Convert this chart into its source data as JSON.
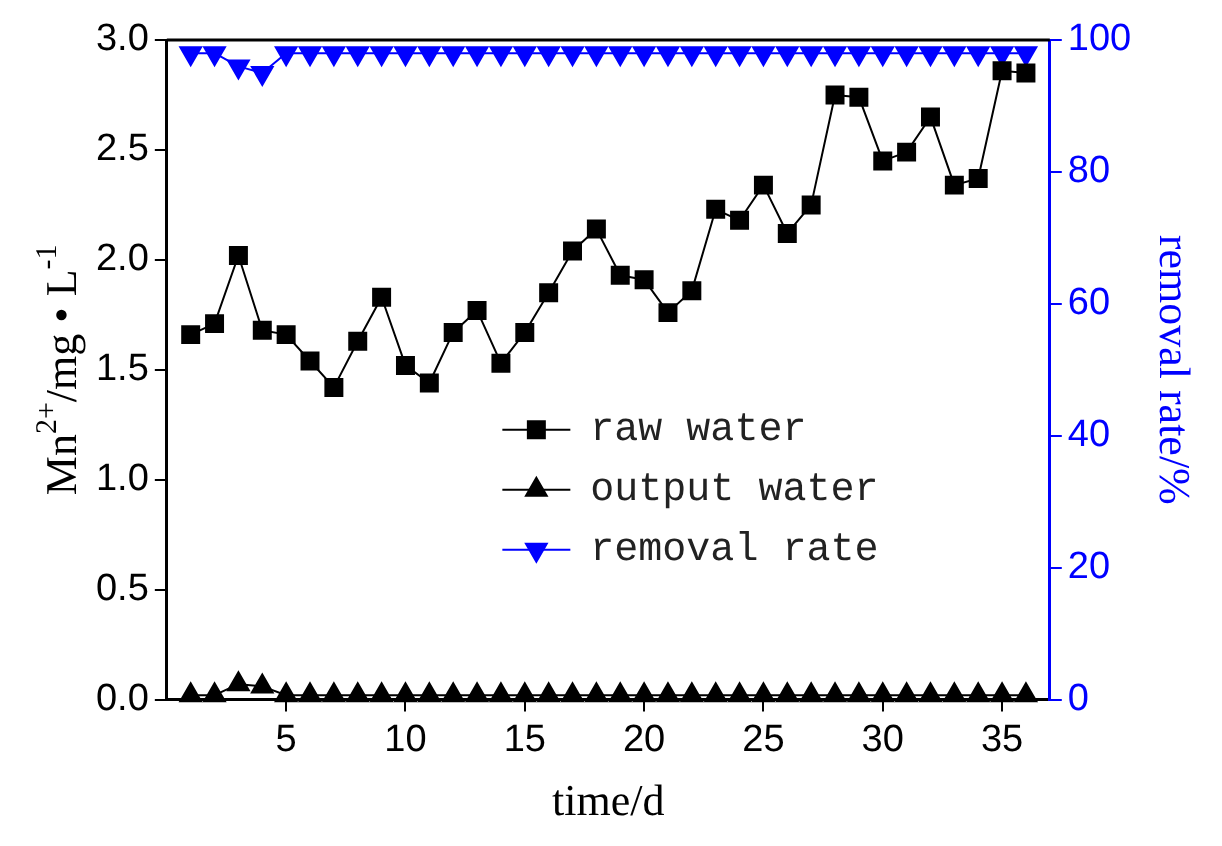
{
  "chart_data": {
    "type": "line",
    "xlabel": "time/d",
    "ylabel": "Mn$^{2+}$/mg • L$^{-1}$",
    "y2label": "removal rate/%",
    "x": [
      1,
      2,
      3,
      4,
      5,
      6,
      7,
      8,
      9,
      10,
      11,
      12,
      13,
      14,
      15,
      16,
      17,
      18,
      19,
      20,
      21,
      22,
      23,
      24,
      25,
      26,
      27,
      28,
      29,
      30,
      31,
      32,
      33,
      34,
      35,
      36
    ],
    "xlim": [
      0,
      37
    ],
    "xticks": [
      5,
      10,
      15,
      20,
      25,
      30,
      35
    ],
    "ylim": [
      0,
      3
    ],
    "yticks": [
      {
        "value": 0,
        "label": "0.0"
      },
      {
        "value": 0.5,
        "label": "0.5"
      },
      {
        "value": 1,
        "label": "1.0"
      },
      {
        "value": 1.5,
        "label": "1.5"
      },
      {
        "value": 2,
        "label": "2.0"
      },
      {
        "value": 2.5,
        "label": "2.5"
      },
      {
        "value": 3,
        "label": "3.0"
      }
    ],
    "y2lim": [
      0,
      100
    ],
    "y2ticks": [
      0,
      20,
      40,
      60,
      80,
      100
    ],
    "grid": false,
    "legend": "right",
    "line_style": "solid",
    "series": [
      {
        "name": "raw water",
        "color": "#000000",
        "marker": "square",
        "values": [
          1.66,
          1.71,
          2.02,
          1.68,
          1.66,
          1.54,
          1.42,
          1.63,
          1.83,
          1.52,
          1.44,
          1.67,
          1.77,
          1.53,
          1.67,
          1.85,
          2.04,
          2.14,
          1.93,
          1.91,
          1.76,
          1.86,
          2.23,
          2.18,
          2.34,
          2.12,
          2.25,
          2.75,
          2.74,
          2.45,
          2.49,
          2.65,
          2.34,
          2.37,
          2.86,
          2.85
        ]
      },
      {
        "name": "output water",
        "color": "#000000",
        "marker": "triangle",
        "values": [
          0.02,
          0.02,
          0.07,
          0.06,
          0.02,
          0.02,
          0.02,
          0.02,
          0.02,
          0.02,
          0.02,
          0.02,
          0.02,
          0.02,
          0.02,
          0.02,
          0.02,
          0.02,
          0.02,
          0.02,
          0.02,
          0.02,
          0.02,
          0.02,
          0.02,
          0.02,
          0.02,
          0.02,
          0.02,
          0.02,
          0.02,
          0.02,
          0.02,
          0.02,
          0.02,
          0.02
        ]
      },
      {
        "name": "removal rate",
        "color": "#0000ff",
        "marker": "triangle-down",
        "axis": "y2",
        "values": [
          98,
          98,
          96,
          95,
          98,
          98,
          98,
          98,
          98,
          98,
          98,
          98,
          98,
          98,
          98,
          98,
          98,
          98,
          98,
          98,
          98,
          98,
          98,
          98,
          98,
          98,
          98,
          98,
          98,
          98,
          98,
          98,
          98,
          98,
          98,
          98
        ]
      }
    ]
  }
}
